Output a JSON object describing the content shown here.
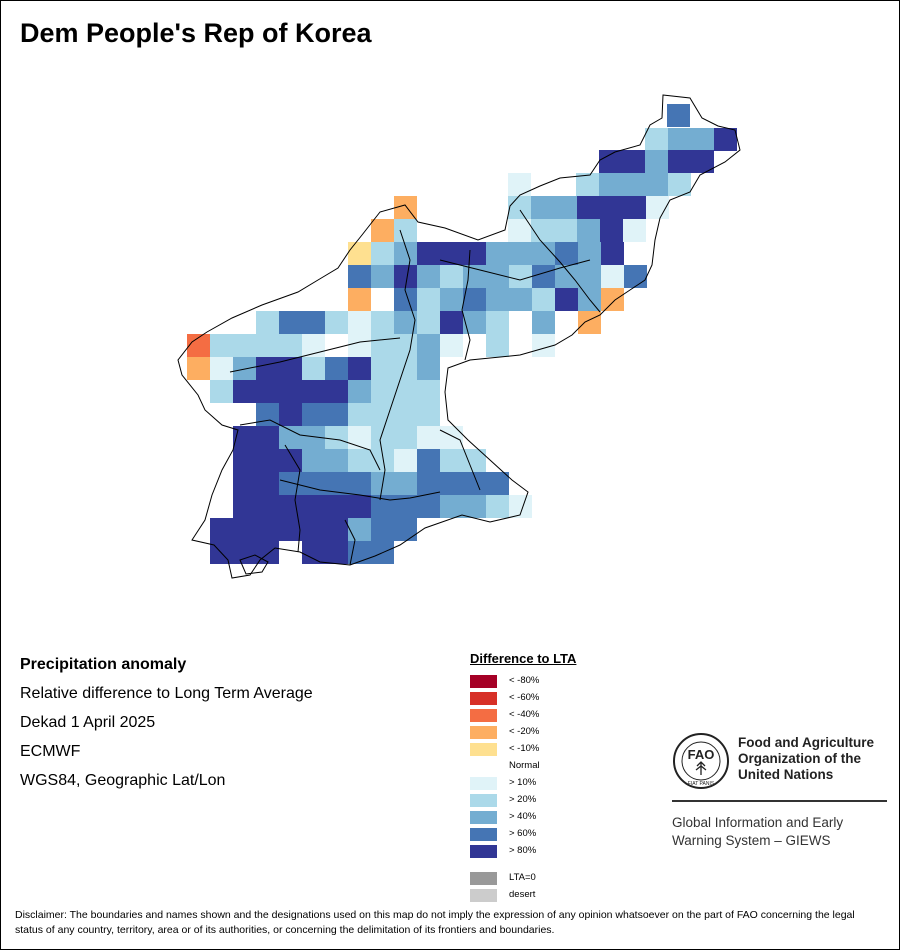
{
  "title": "Dem People's Rep of Korea",
  "info": {
    "heading": "Precipitation anomaly",
    "line1": "Relative difference to Long Term Average",
    "line2": "Dekad 1 April 2025",
    "line3": "ECMWF",
    "line4": "WGS84, Geographic Lat/Lon"
  },
  "legend": {
    "title": "Difference to LTA",
    "items": [
      {
        "label": "< -80%",
        "color": "#a50026"
      },
      {
        "label": "< -60%",
        "color": "#d73027"
      },
      {
        "label": "< -40%",
        "color": "#f46d43"
      },
      {
        "label": "< -20%",
        "color": "#fdae61"
      },
      {
        "label": "< -10%",
        "color": "#fee090"
      },
      {
        "label": "Normal",
        "color": "#ffffff"
      },
      {
        "label": "> 10%",
        "color": "#e0f3f8"
      },
      {
        "label": "> 20%",
        "color": "#abd9e9"
      },
      {
        "label": "> 40%",
        "color": "#74add1"
      },
      {
        "label": "> 60%",
        "color": "#4575b4"
      },
      {
        "label": "> 80%",
        "color": "#313695"
      }
    ],
    "extra": [
      {
        "label": "LTA=0",
        "color": "#999999"
      },
      {
        "label": "desert",
        "color": "#cccccc"
      }
    ]
  },
  "fao": {
    "emblem_text": "FAO",
    "motto": "FIAT PANIS",
    "org_name": "Food and Agriculture Organization of the United Nations",
    "giews": "Global Information and Early Warning System – GIEWS"
  },
  "disclaimer": "Disclaimer: The boundaries and names shown and the designations used on this map do not imply the expression of any opinion whatsoever on the part of FAO concerning the legal status of any country, territory, area or of its authorities, or concerning the delimitation of its frontiers and boundaries.",
  "grid_colors": {
    "1": "#e0f3f8",
    "2": "#abd9e9",
    "3": "#74add1",
    "4": "#4575b4",
    "5": "#313695",
    "w": "#ffffff",
    "o": "#fdae61",
    "y": "#fee090",
    "r": "#f46d43"
  }
}
